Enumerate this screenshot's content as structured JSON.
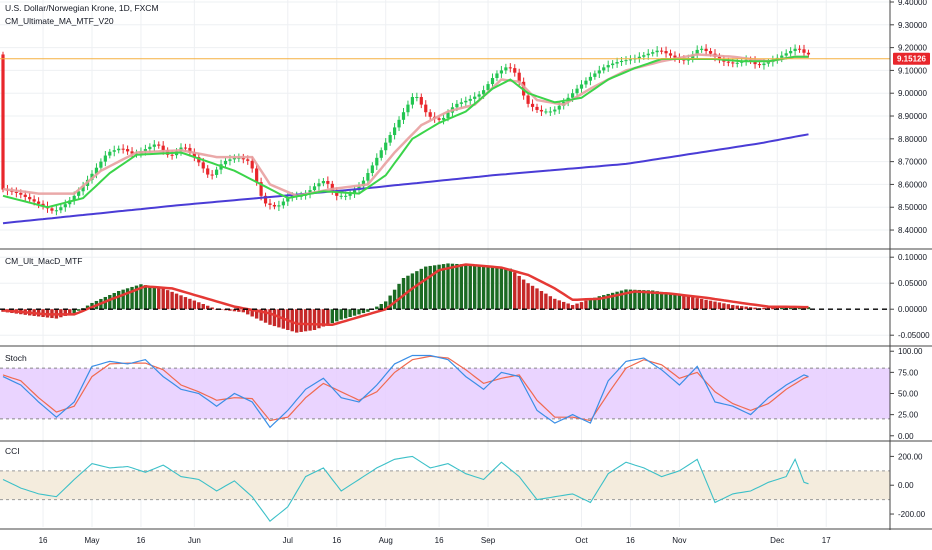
{
  "header": {
    "title": "U.S. Dollar/Norwegian Krone, 1D, FXCM",
    "indicator": "CM_Ultimate_MA_MTF_V20"
  },
  "colors": {
    "bull": "#23c552",
    "bear": "#e8262b",
    "ma_fast": "#3bd44a",
    "ma_slow": "#e8a0a0",
    "ma_long": "#4a3cd6",
    "price_line": "#f5b041",
    "macd_bull": "#1b6b23",
    "macd_bear": "#c62828",
    "macd_signal": "#e53935",
    "stoch_k": "#3a8ee6",
    "stoch_d": "#f06a50",
    "stoch_band": "#e6ccff",
    "cci_line": "#3cc0c8",
    "cci_band": "#f4ecdd",
    "grid": "#eef0f3",
    "border": "#444444"
  },
  "chart_data": [
    {
      "id": "price",
      "type": "candlestick",
      "title": "U.S. Dollar/Norwegian Krone, 1D, FXCM",
      "ylim": [
        8.33,
        9.4
      ],
      "yticks": [
        8.4,
        8.5,
        8.6,
        8.7,
        8.8,
        8.9,
        9.0,
        9.1,
        9.2,
        9.3,
        9.4
      ],
      "last_price": 9.15126,
      "last_price_label": "9.15126",
      "anchors": [
        [
          0,
          8.58
        ],
        [
          4,
          8.56
        ],
        [
          8,
          8.52
        ],
        [
          12,
          8.48
        ],
        [
          15,
          8.52
        ],
        [
          18,
          8.58
        ],
        [
          21,
          8.66
        ],
        [
          24,
          8.74
        ],
        [
          27,
          8.76
        ],
        [
          30,
          8.73
        ],
        [
          33,
          8.76
        ],
        [
          35,
          8.78
        ],
        [
          38,
          8.72
        ],
        [
          41,
          8.77
        ],
        [
          44,
          8.71
        ],
        [
          47,
          8.63
        ],
        [
          50,
          8.7
        ],
        [
          53,
          8.72
        ],
        [
          56,
          8.7
        ],
        [
          59,
          8.52
        ],
        [
          62,
          8.5
        ],
        [
          65,
          8.55
        ],
        [
          68,
          8.55
        ],
        [
          71,
          8.6
        ],
        [
          73,
          8.62
        ],
        [
          75,
          8.55
        ],
        [
          78,
          8.55
        ],
        [
          81,
          8.6
        ],
        [
          84,
          8.7
        ],
        [
          87,
          8.8
        ],
        [
          90,
          8.9
        ],
        [
          93,
          9.0
        ],
        [
          96,
          8.9
        ],
        [
          99,
          8.88
        ],
        [
          102,
          8.95
        ],
        [
          105,
          8.97
        ],
        [
          108,
          9.0
        ],
        [
          111,
          9.08
        ],
        [
          114,
          9.12
        ],
        [
          116,
          9.08
        ],
        [
          118,
          8.96
        ],
        [
          121,
          8.92
        ],
        [
          124,
          8.92
        ],
        [
          127,
          8.97
        ],
        [
          130,
          9.03
        ],
        [
          133,
          9.08
        ],
        [
          136,
          9.12
        ],
        [
          139,
          9.14
        ],
        [
          142,
          9.15
        ],
        [
          145,
          9.17
        ],
        [
          148,
          9.19
        ],
        [
          151,
          9.16
        ],
        [
          154,
          9.14
        ],
        [
          157,
          9.2
        ],
        [
          159,
          9.18
        ],
        [
          162,
          9.14
        ],
        [
          165,
          9.13
        ],
        [
          168,
          9.15
        ],
        [
          170,
          9.12
        ],
        [
          173,
          9.14
        ],
        [
          176,
          9.17
        ],
        [
          179,
          9.2
        ],
        [
          181,
          9.17
        ]
      ],
      "ma_fast": [
        [
          0,
          8.55
        ],
        [
          10,
          8.5
        ],
        [
          18,
          8.54
        ],
        [
          24,
          8.65
        ],
        [
          30,
          8.73
        ],
        [
          40,
          8.74
        ],
        [
          46,
          8.7
        ],
        [
          52,
          8.66
        ],
        [
          58,
          8.6
        ],
        [
          64,
          8.54
        ],
        [
          72,
          8.57
        ],
        [
          80,
          8.56
        ],
        [
          86,
          8.64
        ],
        [
          92,
          8.8
        ],
        [
          98,
          8.87
        ],
        [
          104,
          8.92
        ],
        [
          110,
          9.02
        ],
        [
          114,
          9.06
        ],
        [
          118,
          9.0
        ],
        [
          124,
          8.96
        ],
        [
          130,
          8.98
        ],
        [
          136,
          9.06
        ],
        [
          142,
          9.11
        ],
        [
          148,
          9.15
        ],
        [
          154,
          9.15
        ],
        [
          160,
          9.15
        ],
        [
          166,
          9.14
        ],
        [
          172,
          9.14
        ],
        [
          178,
          9.16
        ],
        [
          181,
          9.16
        ]
      ],
      "ma_slow": [
        [
          0,
          8.58
        ],
        [
          8,
          8.56
        ],
        [
          16,
          8.56
        ],
        [
          22,
          8.66
        ],
        [
          30,
          8.74
        ],
        [
          40,
          8.75
        ],
        [
          48,
          8.72
        ],
        [
          56,
          8.72
        ],
        [
          60,
          8.6
        ],
        [
          66,
          8.55
        ],
        [
          74,
          8.58
        ],
        [
          82,
          8.6
        ],
        [
          88,
          8.74
        ],
        [
          94,
          8.86
        ],
        [
          100,
          8.92
        ],
        [
          106,
          8.95
        ],
        [
          112,
          9.06
        ],
        [
          116,
          9.05
        ],
        [
          120,
          8.97
        ],
        [
          126,
          8.95
        ],
        [
          132,
          9.02
        ],
        [
          140,
          9.1
        ],
        [
          148,
          9.14
        ],
        [
          156,
          9.17
        ],
        [
          164,
          9.16
        ],
        [
          172,
          9.14
        ],
        [
          178,
          9.16
        ],
        [
          181,
          9.16
        ]
      ],
      "ma_long": [
        [
          0,
          8.43
        ],
        [
          40,
          8.51
        ],
        [
          80,
          8.58
        ],
        [
          110,
          8.64
        ],
        [
          140,
          8.69
        ],
        [
          170,
          8.78
        ],
        [
          181,
          8.82
        ]
      ]
    },
    {
      "id": "macd",
      "type": "bar",
      "title": "CM_Ult_MacD_MTF",
      "ylim": [
        -0.065,
        0.11
      ],
      "yticks": [
        -0.05,
        0.0,
        0.05,
        0.1
      ],
      "ytick_labels": [
        "-0.05000",
        "0.00000",
        "0.05000",
        "0.10000"
      ],
      "anchors": [
        [
          0,
          -0.005
        ],
        [
          6,
          -0.012
        ],
        [
          12,
          -0.018
        ],
        [
          16,
          -0.008
        ],
        [
          20,
          0.012
        ],
        [
          26,
          0.035
        ],
        [
          31,
          0.048
        ],
        [
          36,
          0.04
        ],
        [
          42,
          0.02
        ],
        [
          48,
          0.0
        ],
        [
          54,
          -0.006
        ],
        [
          60,
          -0.03
        ],
        [
          66,
          -0.045
        ],
        [
          70,
          -0.04
        ],
        [
          76,
          -0.02
        ],
        [
          82,
          -0.005
        ],
        [
          86,
          0.015
        ],
        [
          90,
          0.06
        ],
        [
          95,
          0.082
        ],
        [
          100,
          0.088
        ],
        [
          104,
          0.086
        ],
        [
          110,
          0.082
        ],
        [
          114,
          0.078
        ],
        [
          118,
          0.05
        ],
        [
          124,
          0.02
        ],
        [
          128,
          0.008
        ],
        [
          134,
          0.025
        ],
        [
          140,
          0.038
        ],
        [
          146,
          0.036
        ],
        [
          152,
          0.028
        ],
        [
          158,
          0.018
        ],
        [
          164,
          0.008
        ],
        [
          170,
          0.002
        ],
        [
          176,
          0.006
        ],
        [
          181,
          0.004
        ]
      ],
      "signal": [
        [
          0,
          -0.002
        ],
        [
          10,
          -0.01
        ],
        [
          16,
          -0.01
        ],
        [
          24,
          0.018
        ],
        [
          32,
          0.044
        ],
        [
          38,
          0.04
        ],
        [
          46,
          0.02
        ],
        [
          52,
          0.005
        ],
        [
          60,
          -0.008
        ],
        [
          66,
          -0.028
        ],
        [
          74,
          -0.03
        ],
        [
          80,
          -0.015
        ],
        [
          86,
          0.0
        ],
        [
          92,
          0.04
        ],
        [
          98,
          0.075
        ],
        [
          104,
          0.086
        ],
        [
          112,
          0.08
        ],
        [
          118,
          0.066
        ],
        [
          124,
          0.04
        ],
        [
          128,
          0.018
        ],
        [
          134,
          0.02
        ],
        [
          142,
          0.034
        ],
        [
          150,
          0.03
        ],
        [
          158,
          0.022
        ],
        [
          166,
          0.012
        ],
        [
          172,
          0.005
        ],
        [
          181,
          0.004
        ]
      ],
      "zero_line": 0.0
    },
    {
      "id": "stoch",
      "type": "line",
      "title": "Stoch",
      "ylim": [
        -5,
        105
      ],
      "yticks": [
        0,
        25,
        50,
        75,
        100
      ],
      "ytick_labels": [
        "0.00",
        "25.00",
        "50.00",
        "75.00",
        "100.00"
      ],
      "band": [
        20,
        80
      ],
      "k": [
        [
          0,
          70
        ],
        [
          4,
          60
        ],
        [
          8,
          40
        ],
        [
          12,
          22
        ],
        [
          16,
          40
        ],
        [
          20,
          82
        ],
        [
          24,
          88
        ],
        [
          28,
          85
        ],
        [
          32,
          90
        ],
        [
          36,
          70
        ],
        [
          40,
          55
        ],
        [
          44,
          50
        ],
        [
          48,
          35
        ],
        [
          52,
          50
        ],
        [
          56,
          40
        ],
        [
          60,
          10
        ],
        [
          64,
          30
        ],
        [
          68,
          55
        ],
        [
          72,
          68
        ],
        [
          76,
          45
        ],
        [
          80,
          40
        ],
        [
          84,
          60
        ],
        [
          88,
          85
        ],
        [
          92,
          95
        ],
        [
          96,
          95
        ],
        [
          100,
          90
        ],
        [
          104,
          70
        ],
        [
          108,
          55
        ],
        [
          112,
          75
        ],
        [
          116,
          70
        ],
        [
          120,
          30
        ],
        [
          124,
          15
        ],
        [
          128,
          25
        ],
        [
          132,
          15
        ],
        [
          136,
          65
        ],
        [
          140,
          88
        ],
        [
          144,
          92
        ],
        [
          148,
          78
        ],
        [
          152,
          60
        ],
        [
          156,
          82
        ],
        [
          160,
          40
        ],
        [
          164,
          35
        ],
        [
          168,
          25
        ],
        [
          172,
          45
        ],
        [
          176,
          60
        ],
        [
          180,
          72
        ],
        [
          181,
          70
        ]
      ],
      "d": [
        [
          0,
          72
        ],
        [
          4,
          65
        ],
        [
          8,
          45
        ],
        [
          12,
          28
        ],
        [
          16,
          35
        ],
        [
          20,
          70
        ],
        [
          24,
          85
        ],
        [
          28,
          86
        ],
        [
          32,
          86
        ],
        [
          36,
          78
        ],
        [
          40,
          60
        ],
        [
          44,
          52
        ],
        [
          48,
          42
        ],
        [
          52,
          45
        ],
        [
          56,
          44
        ],
        [
          60,
          18
        ],
        [
          64,
          22
        ],
        [
          68,
          45
        ],
        [
          72,
          62
        ],
        [
          76,
          52
        ],
        [
          80,
          42
        ],
        [
          84,
          52
        ],
        [
          88,
          75
        ],
        [
          92,
          90
        ],
        [
          96,
          94
        ],
        [
          100,
          92
        ],
        [
          104,
          78
        ],
        [
          108,
          62
        ],
        [
          112,
          68
        ],
        [
          116,
          72
        ],
        [
          120,
          42
        ],
        [
          124,
          22
        ],
        [
          128,
          22
        ],
        [
          132,
          18
        ],
        [
          136,
          50
        ],
        [
          140,
          80
        ],
        [
          144,
          90
        ],
        [
          148,
          84
        ],
        [
          152,
          68
        ],
        [
          156,
          75
        ],
        [
          160,
          52
        ],
        [
          164,
          38
        ],
        [
          168,
          30
        ],
        [
          172,
          38
        ],
        [
          176,
          55
        ],
        [
          180,
          68
        ],
        [
          181,
          70
        ]
      ]
    },
    {
      "id": "cci",
      "type": "line",
      "title": "CCI",
      "ylim": [
        -290,
        300
      ],
      "yticks": [
        -200,
        0,
        200
      ],
      "ytick_labels": [
        "-200.00",
        "0.00",
        "200.00"
      ],
      "band": [
        -100,
        100
      ],
      "values": [
        [
          0,
          40
        ],
        [
          4,
          -20
        ],
        [
          8,
          -60
        ],
        [
          12,
          -80
        ],
        [
          16,
          40
        ],
        [
          20,
          150
        ],
        [
          24,
          120
        ],
        [
          28,
          130
        ],
        [
          32,
          90
        ],
        [
          36,
          140
        ],
        [
          40,
          60
        ],
        [
          44,
          40
        ],
        [
          48,
          -40
        ],
        [
          52,
          30
        ],
        [
          56,
          -80
        ],
        [
          60,
          -250
        ],
        [
          64,
          -150
        ],
        [
          68,
          60
        ],
        [
          72,
          120
        ],
        [
          76,
          -40
        ],
        [
          80,
          40
        ],
        [
          84,
          120
        ],
        [
          88,
          180
        ],
        [
          92,
          200
        ],
        [
          96,
          120
        ],
        [
          100,
          150
        ],
        [
          104,
          80
        ],
        [
          108,
          40
        ],
        [
          112,
          160
        ],
        [
          116,
          60
        ],
        [
          120,
          -100
        ],
        [
          124,
          -80
        ],
        [
          128,
          -60
        ],
        [
          132,
          -120
        ],
        [
          136,
          80
        ],
        [
          140,
          160
        ],
        [
          144,
          120
        ],
        [
          148,
          60
        ],
        [
          152,
          100
        ],
        [
          156,
          180
        ],
        [
          160,
          -120
        ],
        [
          164,
          -60
        ],
        [
          168,
          -40
        ],
        [
          172,
          20
        ],
        [
          176,
          60
        ],
        [
          178,
          180
        ],
        [
          180,
          20
        ],
        [
          181,
          10
        ]
      ]
    },
    {
      "id": "x_axis",
      "type": "axis",
      "labels": [
        "16",
        "May",
        "16",
        "Jun",
        "Jul",
        "16",
        "Aug",
        "16",
        "Sep",
        "Oct",
        "16",
        "Nov",
        "Dec",
        "17"
      ],
      "label_bars": [
        9,
        20,
        31,
        43,
        64,
        75,
        86,
        98,
        109,
        130,
        141,
        152,
        174,
        185
      ]
    }
  ]
}
